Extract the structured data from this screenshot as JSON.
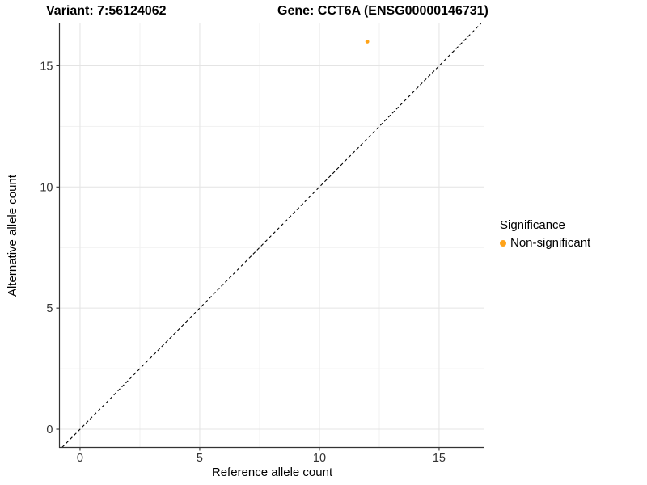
{
  "titles": {
    "variant": "Variant: 7:56124062",
    "gene": "Gene: CCT6A (ENSG00000146731)"
  },
  "legend": {
    "title": "Significance",
    "items": [
      {
        "label": "Non-significant",
        "color": "#FFA319",
        "marker": "circle-icon"
      }
    ]
  },
  "chart_data": {
    "type": "scatter",
    "title": "",
    "xlabel": "Reference allele count",
    "ylabel": "Alternative allele count",
    "xticks": [
      0,
      5,
      10,
      15
    ],
    "yticks": [
      0,
      5,
      10,
      15
    ],
    "minor_xticks": [
      2.5,
      7.5,
      12.5
    ],
    "minor_yticks": [
      2.5,
      7.5,
      12.5
    ],
    "xlim": [
      -0.86,
      16.86
    ],
    "ylim": [
      -0.75,
      16.75
    ],
    "grid": "major-and-minor",
    "legend_position": "right",
    "series": [
      {
        "name": "Non-significant",
        "color": "#FFA319",
        "points": [
          {
            "x": 12,
            "y": 16
          }
        ]
      }
    ],
    "reference_line": {
      "description": "identity line y = x",
      "from": [
        -0.75,
        -0.75
      ],
      "to": [
        16.75,
        16.75
      ],
      "style": "dashed",
      "color": "#000000"
    },
    "colors": {
      "background": "#ffffff",
      "grid_major": "#e4e4e4",
      "grid_minor": "#f1f1f1",
      "axis_line": "#333333",
      "tick_text": "#333333",
      "point": "#FFA319"
    }
  }
}
